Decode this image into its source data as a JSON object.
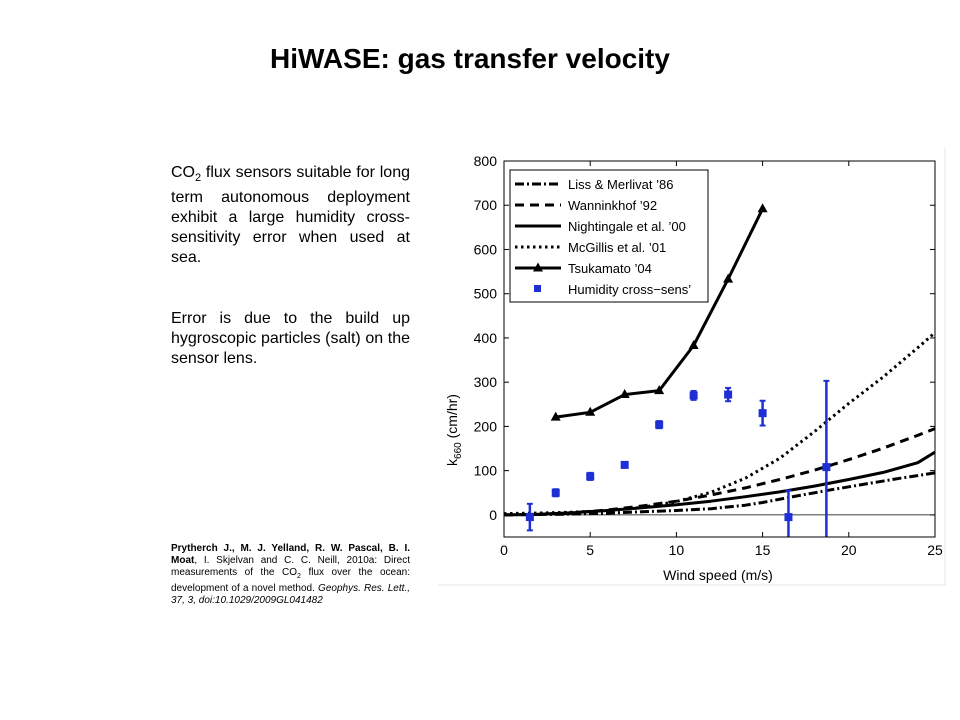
{
  "slide": {
    "title": "HiWASE: gas transfer velocity"
  },
  "text": {
    "p1_co": "CO",
    "p1_sub": "2",
    "p1_rest": " flux sensors suitable for long term autonomous deployment exhibit a large humidity cross-sensitivity error when used at sea.",
    "p2": "Error is due to the build up hygroscopic particles (salt) on the sensor lens."
  },
  "reference": {
    "authors": "Prytherch J., M. J. Yelland, R. W. Pascal, B. I. Moat",
    "part1": ", I. Skjelvan and C. C. Neill, 2010a: Direct measurements of the CO",
    "sub": "2",
    "part2": " flux over the ocean: development of a novel method. ",
    "journal": "Geophys. Res. Lett., 37, 3,  doi:10.1029/2009GL041482"
  },
  "chart_data": {
    "type": "line",
    "xlabel": "Wind speed (m/s)",
    "ylabel_main": "k",
    "ylabel_sub": "660",
    "ylabel_unit": " (cm/hr)",
    "xlim": [
      0,
      25
    ],
    "ylim": [
      -50,
      800
    ],
    "xticks": [
      0,
      5,
      10,
      15,
      20,
      25
    ],
    "yticks": [
      0,
      100,
      200,
      300,
      400,
      500,
      600,
      700,
      800
    ],
    "zero_line": true,
    "grid": false,
    "legend_position": "top-left",
    "series": [
      {
        "name": "Liss & Merlivat ’86",
        "style": "dashdot",
        "color": "#000000",
        "x": [
          0,
          3.6,
          5,
          8,
          10,
          12,
          14,
          15,
          17,
          19,
          21,
          23,
          25
        ],
        "y": [
          0,
          1.5,
          3,
          7,
          10,
          14,
          22,
          28,
          43,
          57,
          70,
          83,
          95
        ]
      },
      {
        "name": "Wanninkhof ’92",
        "style": "dashed",
        "color": "#000000",
        "x": [
          0,
          2,
          4,
          6,
          8,
          10,
          12,
          14,
          16,
          18,
          20,
          22,
          24,
          25
        ],
        "y": [
          0,
          1.2,
          5,
          11,
          20,
          31,
          45,
          61,
          80,
          101,
          125,
          151,
          180,
          195
        ]
      },
      {
        "name": "Nightingale et al. ’00",
        "style": "solid",
        "color": "#000000",
        "x": [
          0,
          2,
          4,
          6,
          8,
          10,
          12,
          14,
          16,
          18,
          20,
          22,
          24,
          25
        ],
        "y": [
          0,
          1.5,
          5,
          10,
          16,
          23,
          31,
          41,
          52,
          65,
          80,
          96,
          118,
          142
        ]
      },
      {
        "name": "McGillis et al. ’01",
        "style": "dotted",
        "color": "#000000",
        "x": [
          0,
          2,
          4,
          6,
          8,
          10,
          12,
          14,
          16,
          18,
          20,
          22,
          24,
          25
        ],
        "y": [
          3,
          4,
          6,
          10,
          17,
          30,
          51,
          83,
          128,
          188,
          252,
          312,
          378,
          412
        ]
      },
      {
        "name": "Tsukamato ’04",
        "style": "solid-triangle",
        "color": "#000000",
        "x": [
          3,
          5,
          7,
          9,
          11,
          13,
          15
        ],
        "y": [
          221,
          232,
          272,
          281,
          383,
          533,
          692
        ]
      },
      {
        "name": "Humidity cross−sens’",
        "style": "errorbar-square",
        "color": "#1f2fd6",
        "x": [
          1.5,
          3,
          5,
          7,
          9,
          11,
          13,
          15,
          16.5,
          18.7
        ],
        "y": [
          -5,
          50,
          87,
          113,
          204,
          270,
          272,
          230,
          -5,
          108
        ],
        "err": [
          30,
          8,
          8,
          6,
          8,
          10,
          15,
          28,
          60,
          195
        ]
      }
    ]
  }
}
